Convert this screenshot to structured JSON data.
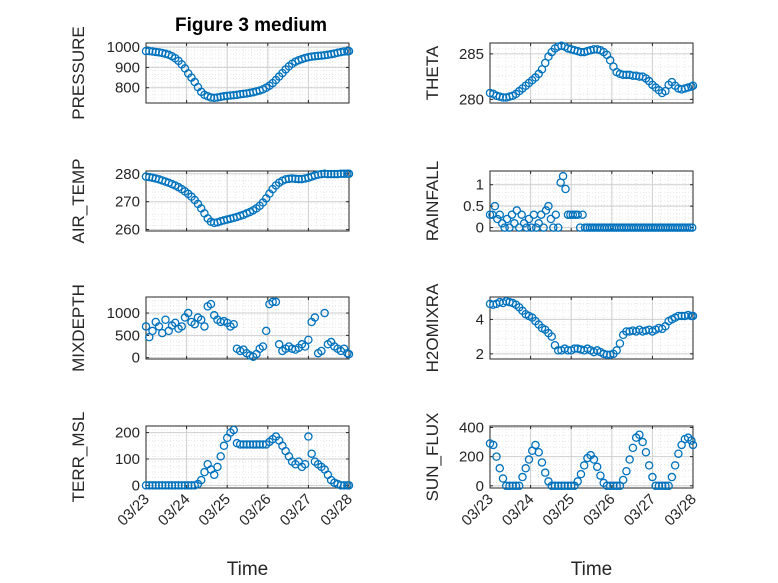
{
  "figure": {
    "title": "Figure 3 medium"
  },
  "chart_data": [
    {
      "id": "PRESSURE",
      "type": "scatter",
      "ylabel": "PRESSURE",
      "xlim": [
        0,
        5
      ],
      "ylim": [
        725,
        1020
      ],
      "yticks": [
        800,
        900,
        1000
      ],
      "x": [
        0,
        0.08,
        0.16,
        0.24,
        0.32,
        0.4,
        0.48,
        0.56,
        0.64,
        0.72,
        0.8,
        0.88,
        0.96,
        1.04,
        1.12,
        1.2,
        1.28,
        1.36,
        1.44,
        1.52,
        1.6,
        1.68,
        1.76,
        1.84,
        1.92,
        2,
        2.08,
        2.16,
        2.24,
        2.32,
        2.4,
        2.48,
        2.56,
        2.64,
        2.72,
        2.8,
        2.88,
        2.96,
        3.04,
        3.12,
        3.2,
        3.28,
        3.36,
        3.44,
        3.52,
        3.6,
        3.68,
        3.76,
        3.84,
        3.92,
        4,
        4.08,
        4.16,
        4.24,
        4.32,
        4.4,
        4.48,
        4.56,
        4.64,
        4.72,
        4.8,
        4.88,
        4.96,
        5
      ],
      "y": [
        980,
        980,
        978,
        976,
        974,
        971,
        967,
        962,
        955,
        945,
        932,
        915,
        895,
        870,
        850,
        828,
        803,
        780,
        765,
        758,
        752,
        750,
        752,
        755,
        758,
        760,
        762,
        763,
        765,
        768,
        770,
        772,
        775,
        778,
        782,
        786,
        792,
        800,
        810,
        823,
        838,
        855,
        872,
        890,
        905,
        918,
        928,
        935,
        941,
        946,
        950,
        953,
        955,
        957,
        958,
        960,
        962,
        965,
        968,
        972,
        975,
        978,
        979,
        980
      ]
    },
    {
      "id": "THETA",
      "type": "scatter",
      "ylabel": "THETA",
      "xlim": [
        0,
        5
      ],
      "ylim": [
        279.6,
        286.2
      ],
      "yticks": [
        280,
        285
      ],
      "x": [
        0,
        0.08,
        0.16,
        0.24,
        0.32,
        0.4,
        0.48,
        0.56,
        0.64,
        0.72,
        0.8,
        0.88,
        0.96,
        1.04,
        1.12,
        1.2,
        1.28,
        1.36,
        1.44,
        1.52,
        1.6,
        1.68,
        1.76,
        1.84,
        1.92,
        2,
        2.08,
        2.16,
        2.24,
        2.32,
        2.4,
        2.48,
        2.56,
        2.64,
        2.72,
        2.8,
        2.88,
        2.96,
        3.04,
        3.12,
        3.2,
        3.28,
        3.36,
        3.44,
        3.52,
        3.6,
        3.68,
        3.76,
        3.84,
        3.92,
        4,
        4.08,
        4.16,
        4.24,
        4.32,
        4.4,
        4.48,
        4.56,
        4.64,
        4.72,
        4.8,
        4.88,
        4.96,
        5
      ],
      "y": [
        280.7,
        280.6,
        280.4,
        280.3,
        280.2,
        280.2,
        280.3,
        280.4,
        280.6,
        280.9,
        281.2,
        281.5,
        281.8,
        282.1,
        282.4,
        282.8,
        283.3,
        284,
        284.7,
        285.2,
        285.6,
        285.8,
        285.9,
        285.8,
        285.6,
        285.5,
        285.4,
        285.3,
        285.2,
        285.2,
        285.3,
        285.4,
        285.5,
        285.5,
        285.4,
        285.2,
        284.9,
        284.3,
        283.6,
        283,
        282.8,
        282.7,
        282.7,
        282.7,
        282.6,
        282.6,
        282.5,
        282.5,
        282.3,
        282,
        281.6,
        281.3,
        281,
        280.7,
        280.9,
        281.6,
        281.9,
        281.5,
        281.2,
        281.1,
        281.2,
        281.3,
        281.4,
        281.5
      ]
    },
    {
      "id": "AIR_TEMP",
      "type": "scatter",
      "ylabel": "AIR_TEMP",
      "xlim": [
        0,
        5
      ],
      "ylim": [
        259.5,
        281
      ],
      "yticks": [
        260,
        270,
        280
      ],
      "x": [
        0,
        0.08,
        0.16,
        0.24,
        0.32,
        0.4,
        0.48,
        0.56,
        0.64,
        0.72,
        0.8,
        0.88,
        0.96,
        1.04,
        1.12,
        1.2,
        1.28,
        1.36,
        1.44,
        1.52,
        1.6,
        1.68,
        1.76,
        1.84,
        1.92,
        2,
        2.08,
        2.16,
        2.24,
        2.32,
        2.4,
        2.48,
        2.56,
        2.64,
        2.72,
        2.8,
        2.88,
        2.96,
        3.04,
        3.12,
        3.2,
        3.28,
        3.36,
        3.44,
        3.52,
        3.6,
        3.68,
        3.76,
        3.84,
        3.92,
        4,
        4.08,
        4.16,
        4.24,
        4.32,
        4.4,
        4.48,
        4.56,
        4.64,
        4.72,
        4.8,
        4.88,
        4.96,
        5
      ],
      "y": [
        279,
        278.8,
        278.6,
        278.3,
        278,
        277.6,
        277.2,
        276.8,
        276.3,
        275.8,
        275.2,
        274.5,
        273.7,
        272.8,
        271.8,
        270.6,
        269.2,
        267.6,
        265.8,
        264,
        262.8,
        262.4,
        262.6,
        263,
        263.3,
        263.6,
        263.9,
        264.2,
        264.5,
        264.9,
        265.3,
        265.8,
        266.3,
        266.9,
        267.6,
        268.5,
        269.7,
        271.2,
        272.9,
        274.5,
        275.8,
        276.8,
        277.5,
        278,
        278.2,
        278.3,
        278.2,
        278.1,
        278.1,
        278.3,
        278.6,
        279,
        279.4,
        279.7,
        279.9,
        280,
        279.9,
        279.9,
        279.9,
        279.9,
        280,
        280,
        280,
        280
      ]
    },
    {
      "id": "RAINFALL",
      "type": "scatter",
      "ylabel": "RAINFALL",
      "xlim": [
        0,
        5
      ],
      "ylim": [
        -0.08,
        1.32
      ],
      "yticks": [
        0,
        0.5,
        1
      ],
      "x": [
        0,
        0.06,
        0.12,
        0.18,
        0.24,
        0.3,
        0.36,
        0.42,
        0.48,
        0.54,
        0.6,
        0.66,
        0.72,
        0.78,
        0.84,
        0.9,
        0.96,
        1.02,
        1.08,
        1.14,
        1.2,
        1.26,
        1.32,
        1.38,
        1.44,
        1.5,
        1.56,
        1.62,
        1.68,
        1.74,
        1.8,
        1.86,
        1.92,
        1.98,
        2.04,
        2.1,
        2.16,
        2.22,
        2.28,
        2.34,
        2.4,
        2.46,
        2.52,
        2.58,
        2.64,
        2.7,
        2.76,
        2.82,
        2.88,
        2.94,
        3,
        3.06,
        3.12,
        3.18,
        3.24,
        3.3,
        3.36,
        3.42,
        3.48,
        3.54,
        3.6,
        3.66,
        3.72,
        3.78,
        3.84,
        3.9,
        3.96,
        4.02,
        4.08,
        4.14,
        4.2,
        4.26,
        4.32,
        4.38,
        4.44,
        4.5,
        4.56,
        4.62,
        4.68,
        4.74,
        4.8,
        4.86,
        4.92,
        4.98
      ],
      "y": [
        0.3,
        0.3,
        0.5,
        0.2,
        0.3,
        0.1,
        0,
        0.2,
        0,
        0.3,
        0.1,
        0.4,
        0,
        0.3,
        0.1,
        0,
        0.2,
        0,
        0.3,
        0,
        0.1,
        0.3,
        0,
        0.4,
        0.5,
        0.2,
        0,
        0.3,
        0,
        1.05,
        1.2,
        0.9,
        0.3,
        0.3,
        0.3,
        0.3,
        0.3,
        0,
        0.3,
        0,
        0,
        0,
        0,
        0,
        0,
        0,
        0,
        0,
        0,
        0,
        0,
        0,
        0,
        0,
        0,
        0,
        0,
        0,
        0,
        0,
        0,
        0,
        0,
        0,
        0,
        0,
        0,
        0,
        0,
        0,
        0,
        0,
        0,
        0,
        0,
        0,
        0,
        0,
        0,
        0,
        0,
        0,
        0,
        0
      ]
    },
    {
      "id": "MIXDEPTH",
      "type": "scatter",
      "ylabel": "MIXDEPTH",
      "xlim": [
        0,
        5
      ],
      "ylim": [
        -30,
        1360
      ],
      "yticks": [
        0,
        500,
        1000
      ],
      "x": [
        0,
        0.08,
        0.16,
        0.24,
        0.32,
        0.4,
        0.48,
        0.56,
        0.64,
        0.72,
        0.8,
        0.88,
        0.96,
        1.04,
        1.12,
        1.2,
        1.28,
        1.36,
        1.44,
        1.52,
        1.6,
        1.68,
        1.76,
        1.84,
        1.92,
        2,
        2.08,
        2.16,
        2.24,
        2.32,
        2.4,
        2.48,
        2.56,
        2.64,
        2.72,
        2.8,
        2.88,
        2.96,
        3.04,
        3.12,
        3.2,
        3.28,
        3.36,
        3.44,
        3.52,
        3.6,
        3.68,
        3.76,
        3.84,
        3.92,
        4,
        4.08,
        4.16,
        4.24,
        4.32,
        4.4,
        4.48,
        4.56,
        4.64,
        4.72,
        4.8,
        4.88,
        4.96,
        5
      ],
      "y": [
        700,
        460,
        600,
        800,
        700,
        550,
        850,
        600,
        720,
        780,
        650,
        700,
        900,
        1000,
        800,
        750,
        900,
        850,
        700,
        1150,
        1200,
        950,
        850,
        800,
        820,
        780,
        700,
        750,
        200,
        150,
        180,
        100,
        50,
        20,
        80,
        200,
        250,
        600,
        1200,
        1250,
        1250,
        300,
        150,
        200,
        250,
        200,
        180,
        220,
        300,
        250,
        400,
        800,
        900,
        100,
        150,
        1000,
        300,
        350,
        250,
        200,
        150,
        200,
        100,
        80
      ]
    },
    {
      "id": "H2OMIXRA",
      "type": "scatter",
      "ylabel": "H2OMIXRA",
      "xlim": [
        0,
        5
      ],
      "ylim": [
        1.7,
        5.3
      ],
      "yticks": [
        2,
        4
      ],
      "x": [
        0,
        0.08,
        0.16,
        0.24,
        0.32,
        0.4,
        0.48,
        0.56,
        0.64,
        0.72,
        0.8,
        0.88,
        0.96,
        1.04,
        1.12,
        1.2,
        1.28,
        1.36,
        1.44,
        1.52,
        1.6,
        1.68,
        1.76,
        1.84,
        1.92,
        2,
        2.08,
        2.16,
        2.24,
        2.32,
        2.4,
        2.48,
        2.56,
        2.64,
        2.72,
        2.8,
        2.88,
        2.96,
        3.04,
        3.12,
        3.2,
        3.28,
        3.36,
        3.44,
        3.52,
        3.6,
        3.68,
        3.76,
        3.84,
        3.92,
        4,
        4.08,
        4.16,
        4.24,
        4.32,
        4.4,
        4.48,
        4.56,
        4.64,
        4.72,
        4.8,
        4.88,
        4.96,
        5
      ],
      "y": [
        4.9,
        4.85,
        4.9,
        5,
        4.95,
        5.05,
        5,
        4.95,
        4.85,
        4.7,
        4.5,
        4.3,
        4.2,
        4.1,
        3.9,
        3.7,
        3.5,
        3.4,
        3.2,
        3.0,
        2.5,
        2.2,
        2.2,
        2.3,
        2.2,
        2.2,
        2.3,
        2.3,
        2.25,
        2.2,
        2.3,
        2.2,
        2.1,
        2.2,
        2.1,
        2.0,
        1.95,
        1.95,
        2.0,
        2.2,
        2.6,
        3.1,
        3.3,
        3.3,
        3.35,
        3.3,
        3.4,
        3.3,
        3.35,
        3.4,
        3.3,
        3.4,
        3.5,
        3.45,
        3.6,
        3.9,
        4.0,
        4.1,
        4.2,
        4.2,
        4.2,
        4.25,
        4.2,
        4.2
      ]
    },
    {
      "id": "TERR_MSL",
      "type": "scatter",
      "ylabel": "TERR_MSL",
      "xlim": [
        0,
        5
      ],
      "ylim": [
        -10,
        225
      ],
      "yticks": [
        0,
        100,
        200
      ],
      "x": [
        0,
        0.08,
        0.16,
        0.24,
        0.32,
        0.4,
        0.48,
        0.56,
        0.64,
        0.72,
        0.8,
        0.88,
        0.96,
        1.04,
        1.12,
        1.2,
        1.28,
        1.36,
        1.44,
        1.52,
        1.6,
        1.68,
        1.76,
        1.84,
        1.92,
        2,
        2.08,
        2.16,
        2.24,
        2.32,
        2.4,
        2.48,
        2.56,
        2.64,
        2.72,
        2.8,
        2.88,
        2.96,
        3.04,
        3.12,
        3.2,
        3.28,
        3.36,
        3.44,
        3.52,
        3.6,
        3.68,
        3.76,
        3.84,
        3.92,
        4,
        4.08,
        4.16,
        4.24,
        4.32,
        4.4,
        4.48,
        4.56,
        4.64,
        4.72,
        4.8,
        4.88,
        4.96,
        5
      ],
      "y": [
        0,
        0,
        0,
        0,
        0,
        0,
        0,
        0,
        0,
        0,
        0,
        0,
        0,
        0,
        0,
        0,
        5,
        20,
        50,
        80,
        60,
        40,
        70,
        110,
        150,
        180,
        200,
        210,
        160,
        155,
        155,
        155,
        155,
        155,
        155,
        155,
        155,
        155,
        165,
        175,
        185,
        170,
        150,
        130,
        110,
        90,
        80,
        90,
        70,
        80,
        185,
        120,
        90,
        80,
        70,
        60,
        40,
        20,
        10,
        5,
        0,
        0,
        0,
        0
      ]
    },
    {
      "id": "SUN_FLUX",
      "type": "scatter",
      "ylabel": "SUN_FLUX",
      "xlim": [
        0,
        5
      ],
      "ylim": [
        -15,
        410
      ],
      "yticks": [
        0,
        200,
        400
      ],
      "x": [
        0,
        0.08,
        0.16,
        0.24,
        0.32,
        0.4,
        0.48,
        0.56,
        0.64,
        0.72,
        0.8,
        0.88,
        0.96,
        1.04,
        1.12,
        1.2,
        1.28,
        1.36,
        1.44,
        1.52,
        1.6,
        1.68,
        1.76,
        1.84,
        1.92,
        2,
        2.08,
        2.16,
        2.24,
        2.32,
        2.4,
        2.48,
        2.56,
        2.64,
        2.72,
        2.8,
        2.88,
        2.96,
        3.04,
        3.12,
        3.2,
        3.28,
        3.36,
        3.44,
        3.52,
        3.6,
        3.68,
        3.76,
        3.84,
        3.92,
        4,
        4.08,
        4.16,
        4.24,
        4.32,
        4.4,
        4.48,
        4.56,
        4.64,
        4.72,
        4.8,
        4.88,
        4.96,
        5
      ],
      "y": [
        290,
        280,
        200,
        120,
        50,
        0,
        0,
        0,
        0,
        0,
        60,
        120,
        180,
        240,
        280,
        230,
        160,
        90,
        30,
        0,
        0,
        0,
        0,
        0,
        0,
        0,
        0,
        30,
        80,
        140,
        190,
        210,
        180,
        130,
        70,
        20,
        0,
        0,
        0,
        0,
        0,
        40,
        100,
        180,
        260,
        330,
        350,
        300,
        230,
        140,
        60,
        0,
        0,
        0,
        0,
        0,
        60,
        140,
        220,
        280,
        320,
        330,
        310,
        280
      ]
    }
  ],
  "x_axis": {
    "label": "Time",
    "ticks": [
      "03/23",
      "03/24",
      "03/25",
      "03/26",
      "03/27",
      "03/28"
    ]
  },
  "colors": {
    "marker": "#0072BD",
    "axis": "#262626",
    "grid": "#dedede"
  }
}
